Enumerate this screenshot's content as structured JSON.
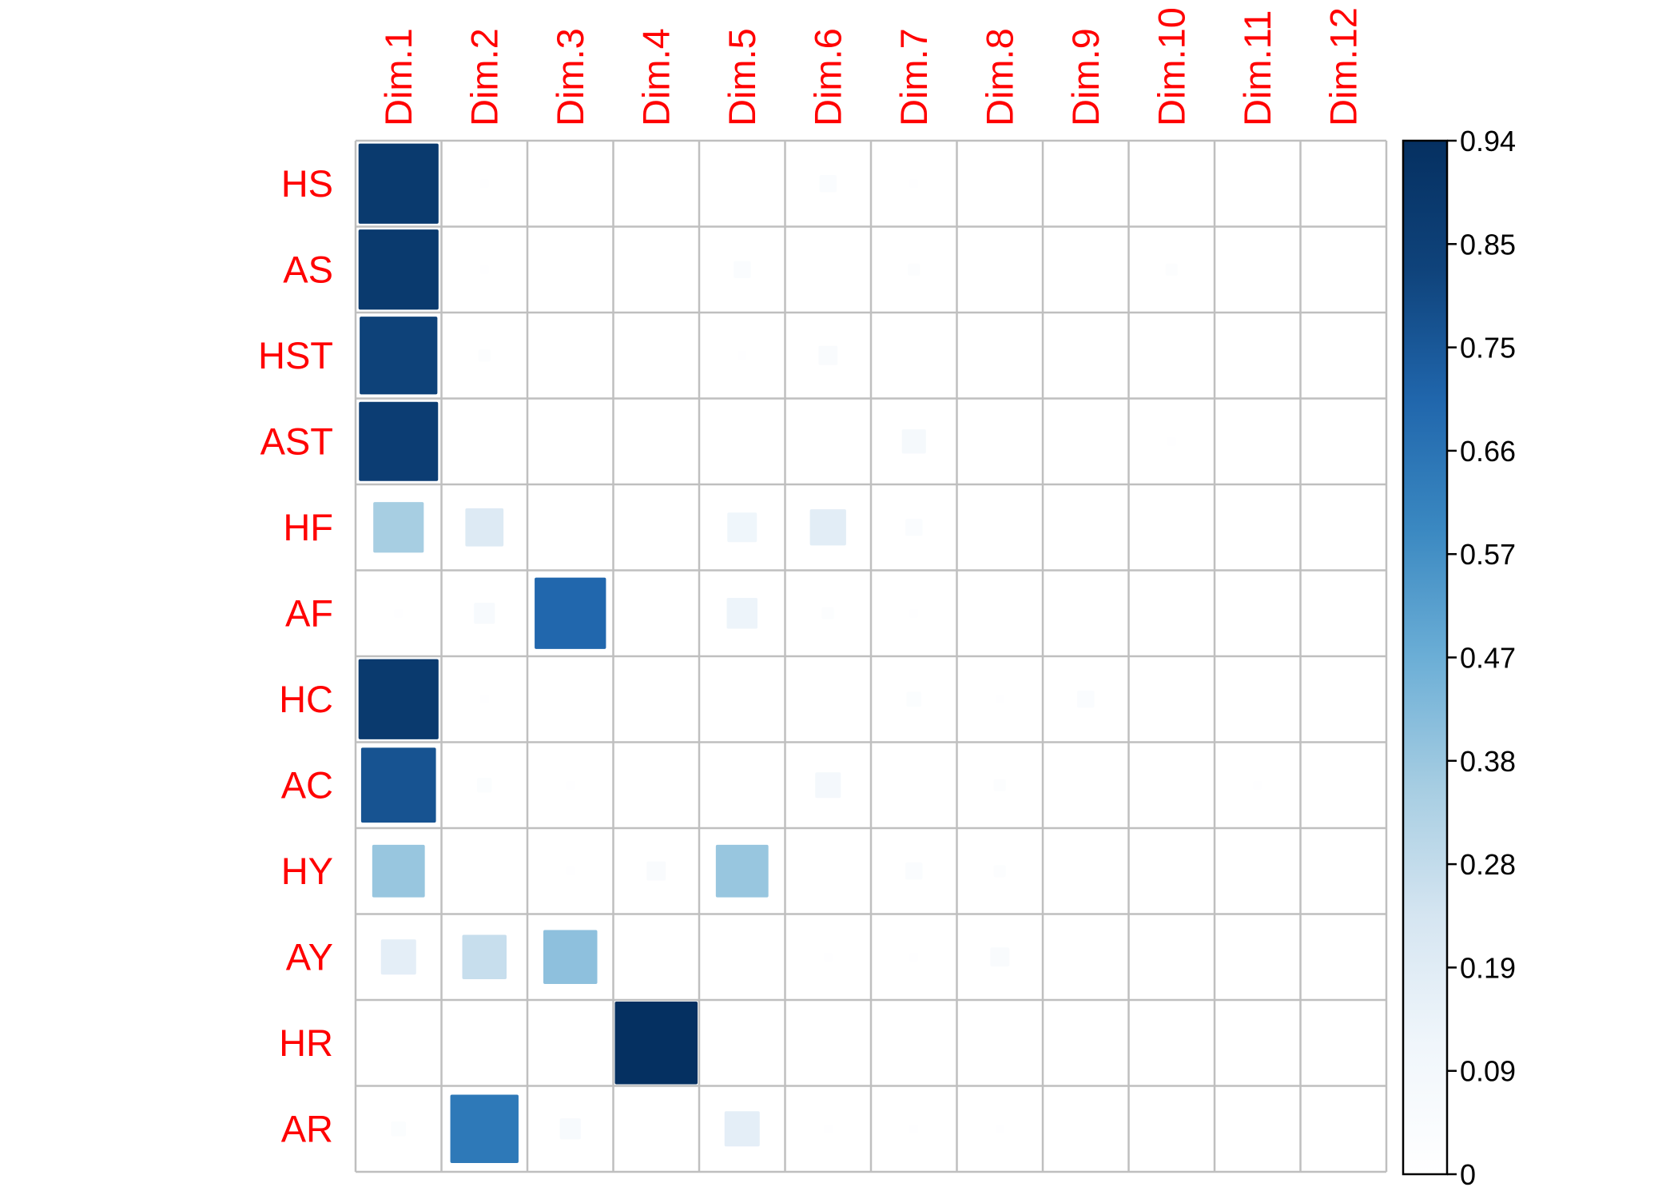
{
  "chart_data": {
    "type": "heatmap",
    "rows": [
      "HS",
      "AS",
      "HST",
      "AST",
      "HF",
      "AF",
      "HC",
      "AC",
      "HY",
      "AY",
      "HR",
      "AR"
    ],
    "columns": [
      "Dim.1",
      "Dim.2",
      "Dim.3",
      "Dim.4",
      "Dim.5",
      "Dim.6",
      "Dim.7",
      "Dim.8",
      "Dim.9",
      "Dim.10",
      "Dim.11",
      "Dim.12"
    ],
    "values": [
      [
        0.88,
        0.01,
        0.0,
        0.0,
        0.0,
        0.04,
        0.01,
        0.0,
        0.0,
        0.0,
        0.0,
        0.0
      ],
      [
        0.88,
        0.01,
        0.0,
        0.0,
        0.04,
        0.0,
        0.02,
        0.0,
        0.0,
        0.02,
        0.0,
        0.0
      ],
      [
        0.83,
        0.02,
        0.0,
        0.0,
        0.01,
        0.05,
        0.0,
        0.0,
        0.0,
        0.0,
        0.0,
        0.0
      ],
      [
        0.86,
        0.0,
        0.0,
        0.0,
        0.0,
        0.0,
        0.08,
        0.0,
        0.0,
        0.01,
        0.0,
        0.0
      ],
      [
        0.35,
        0.2,
        0.0,
        0.0,
        0.12,
        0.18,
        0.04,
        0.0,
        0.0,
        0.0,
        0.0,
        0.0
      ],
      [
        0.01,
        0.06,
        0.7,
        0.0,
        0.13,
        0.02,
        0.01,
        0.0,
        0.0,
        0.0,
        0.0,
        0.0
      ],
      [
        0.88,
        0.01,
        0.0,
        0.0,
        0.0,
        0.0,
        0.03,
        0.01,
        0.04,
        0.0,
        0.0,
        0.0
      ],
      [
        0.77,
        0.03,
        0.01,
        0.0,
        0.0,
        0.09,
        0.0,
        0.02,
        0.0,
        0.0,
        0.01,
        0.0
      ],
      [
        0.38,
        0.0,
        0.01,
        0.05,
        0.38,
        0.0,
        0.04,
        0.02,
        0.0,
        0.0,
        0.0,
        0.0
      ],
      [
        0.17,
        0.27,
        0.4,
        0.0,
        0.0,
        0.01,
        0.01,
        0.05,
        0.0,
        0.0,
        0.0,
        0.0
      ],
      [
        0.0,
        0.0,
        0.0,
        0.94,
        0.0,
        0.0,
        0.0,
        0.0,
        0.0,
        0.0,
        0.0,
        0.0
      ],
      [
        0.03,
        0.64,
        0.06,
        0.0,
        0.17,
        0.01,
        0.01,
        0.01,
        0.0,
        0.0,
        0.0,
        0.0
      ]
    ],
    "scale": {
      "min": 0,
      "max": 0.94,
      "ticks": [
        "0",
        "0.09",
        "0.19",
        "0.28",
        "0.38",
        "0.47",
        "0.57",
        "0.66",
        "0.75",
        "0.85",
        "0.94"
      ]
    },
    "label_color": "#ff0000",
    "grid_color": "#bfbfbf",
    "palette": [
      "#ffffff",
      "#f0f6fb",
      "#d5e5f1",
      "#a6cde2",
      "#6baed6",
      "#3a88c1",
      "#2066ac",
      "#0f437b",
      "#053061"
    ],
    "grid": true,
    "legend_position": "right"
  }
}
